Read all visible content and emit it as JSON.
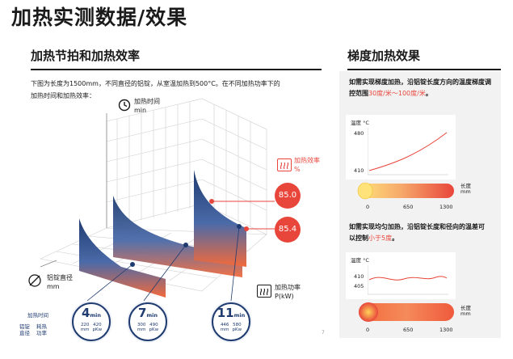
{
  "page_title": "加热实测数据/效果",
  "left": {
    "section_title": "加热节拍和加热效率",
    "intro_line1": "下图为长度为1500mm，不同直径的铝锭，从室温加热到500°C。在不同加热功率下的",
    "intro_line2": "加热时间和加热效率：",
    "axis_time_label": "加热时间",
    "axis_time_unit": "min",
    "axis_efficiency_label": "加热效率",
    "axis_efficiency_unit": "%",
    "axis_diameter_label": "铝锭直径",
    "axis_diameter_unit": "mm",
    "axis_power_label": "加热功率",
    "axis_power_unit": "P(kW)",
    "efficiency_values": [
      "85.0",
      "85.4"
    ],
    "legend": {
      "title": "加热时间",
      "col1": "铝锭\n直径",
      "col2": "耗热\n功率"
    },
    "circles": [
      {
        "time": "4",
        "unit": "min",
        "diameter": "220",
        "diameter_unit": "mm",
        "power": "420",
        "power_unit": "pKw"
      },
      {
        "time": "7",
        "unit": "min",
        "diameter": "300",
        "diameter_unit": "mm",
        "power": "490",
        "power_unit": "pKw"
      },
      {
        "time": "11",
        "unit": "min",
        "diameter": "446",
        "diameter_unit": "mm",
        "power": "580",
        "power_unit": "pKw"
      }
    ],
    "page_mark": "7"
  },
  "right": {
    "section_title": "梯度加热效果",
    "text1_part1": "如需实现梯度加热，沿铝锭长度方向的温度梯度调控范围",
    "text1_highlight": "30度/米～100度/米",
    "text1_end": "。",
    "chart1": {
      "ylabel": "温度 °C",
      "y_ticks": [
        "480",
        "410"
      ],
      "x_ticks": [
        "0",
        "650",
        "1300"
      ],
      "xlabel": "长度\nmm"
    },
    "text2_part1": "如需实现均匀加热，沿铝锭长度和径向的温差可以控制",
    "text2_highlight": "小于5度",
    "text2_end": "。",
    "chart2": {
      "ylabel": "温度 °C",
      "y_ticks": [
        "410",
        "405"
      ],
      "x_ticks": [
        "0",
        "650",
        "1300"
      ],
      "xlabel": "长度\nmm"
    }
  },
  "colors": {
    "accent_red": "#e8463b",
    "navy": "#1f3b70",
    "panel_gray": "#f2f2f2"
  }
}
